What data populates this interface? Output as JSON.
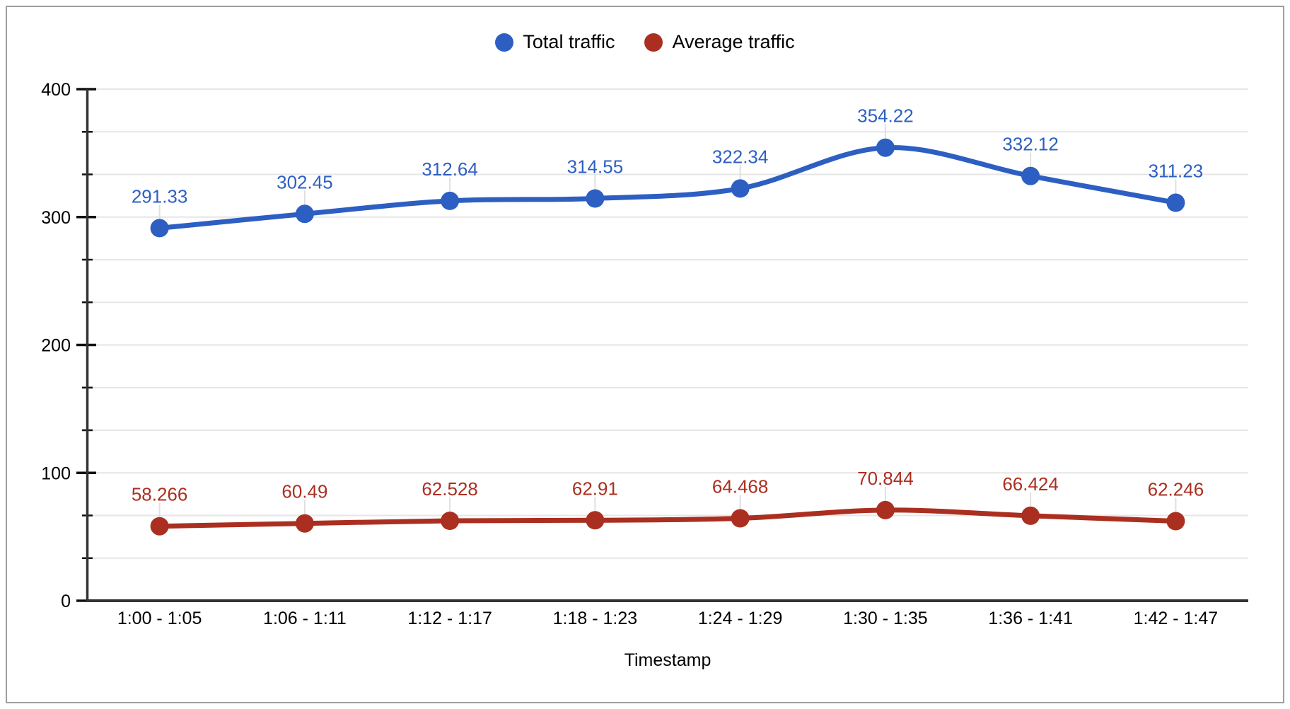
{
  "chart_data": {
    "type": "line",
    "smooth": true,
    "xlabel": "Timestamp",
    "ylabel": "",
    "categories": [
      "1:00 - 1:05",
      "1:06 - 1:11",
      "1:12 - 1:17",
      "1:18 - 1:23",
      "1:24 - 1:29",
      "1:30 - 1:35",
      "1:36 - 1:41",
      "1:42 - 1:47"
    ],
    "series": [
      {
        "name": "Total traffic",
        "color": "#2d5fc3",
        "values": [
          291.33,
          302.45,
          312.64,
          314.55,
          322.34,
          354.22,
          332.12,
          311.23
        ],
        "labels": [
          "291.33",
          "302.45",
          "312.64",
          "314.55",
          "322.34",
          "354.22",
          "332.12",
          "311.23"
        ]
      },
      {
        "name": "Average traffic",
        "color": "#ab2f20",
        "values": [
          58.266,
          60.49,
          62.528,
          62.91,
          64.468,
          70.844,
          66.424,
          62.246
        ],
        "labels": [
          "58.266",
          "60.49",
          "62.528",
          "62.91",
          "64.468",
          "70.844",
          "66.424",
          "62.246"
        ]
      }
    ],
    "ylim": [
      0,
      400
    ],
    "yticks_major": [
      0,
      100,
      200,
      300,
      400
    ],
    "minor_divisions_per_major": 3,
    "grid": "on",
    "legend_position": "top-center",
    "point_labels": "above",
    "style": {
      "gridline_color": "#e6e6e6",
      "axis_color": "#333333",
      "tick_color": "#111111",
      "text_color": "#000000",
      "leader_color": "#e0e0e0",
      "border_color": "#9e9e9e",
      "background": "#ffffff"
    }
  }
}
